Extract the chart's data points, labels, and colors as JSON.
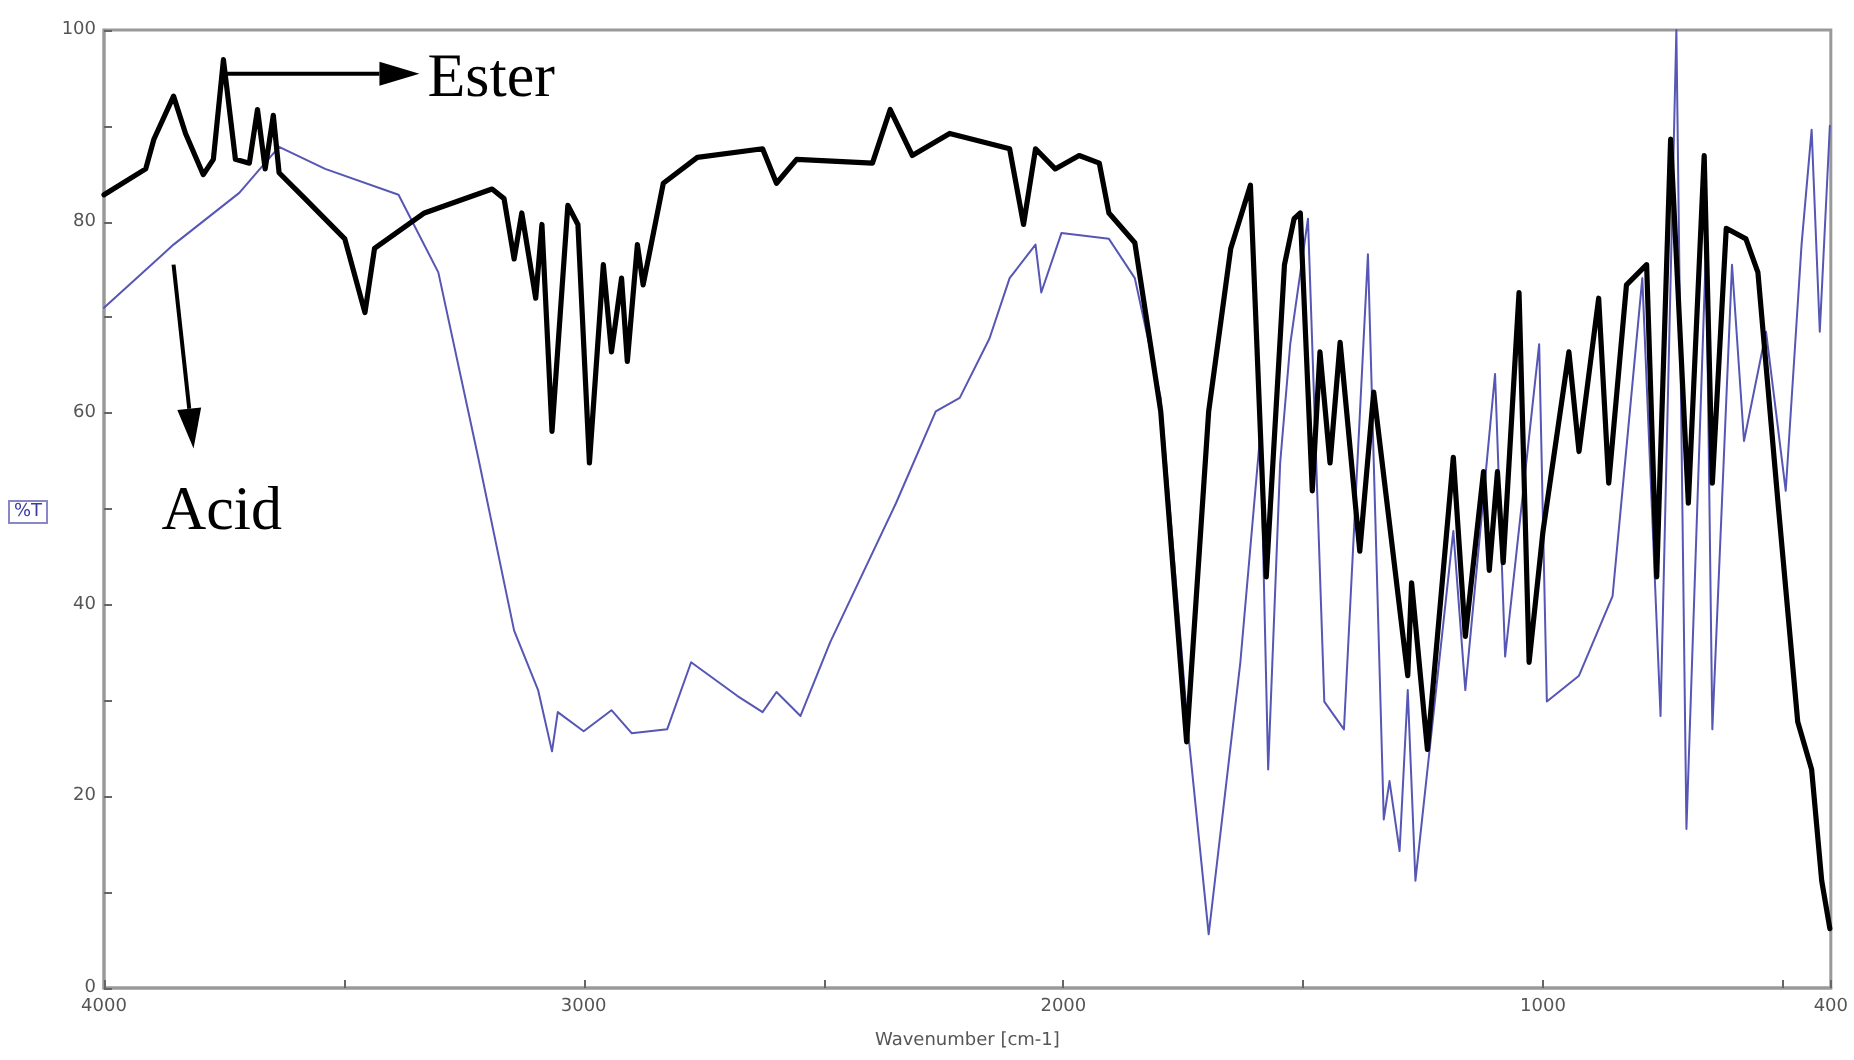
{
  "chart_data": {
    "type": "line",
    "xlabel": "Wavenumber [cm-1]",
    "ylabel": "%T",
    "xlim": [
      4000,
      400
    ],
    "ylim": [
      0,
      100
    ],
    "xticks": [
      4000,
      {
        "value": 3500,
        "label": null
      },
      3000,
      {
        "value": 2500,
        "label": null
      },
      2000,
      {
        "value": 1500,
        "label": null
      },
      1000,
      {
        "value": 500,
        "label": null
      },
      400
    ],
    "yticks": [
      0,
      {
        "value": 10,
        "label": null
      },
      20,
      {
        "value": 30,
        "label": null
      },
      40,
      {
        "value": 50,
        "label": null
      },
      60,
      {
        "value": 70,
        "label": null
      },
      80,
      {
        "value": 90,
        "label": null
      },
      100
    ],
    "grid": false,
    "legend": "top left",
    "marker": "none",
    "line_style": "solid",
    "series": [
      {
        "name": "Ester",
        "color": "#000000",
        "x": [
          4000,
          3913,
          3896,
          3855,
          3830,
          3793,
          3772,
          3751,
          3726,
          3697,
          3680,
          3664,
          3647,
          3635,
          3581,
          3498,
          3456,
          3436,
          3332,
          3191,
          3166,
          3145,
          3129,
          3100,
          3087,
          3066,
          3033,
          3012,
          2988,
          2959,
          2942,
          2921,
          2909,
          2888,
          2876,
          2834,
          2763,
          2627,
          2598,
          2556,
          2398,
          2361,
          2315,
          2237,
          2112,
          2083,
          2058,
          2017,
          1967,
          1925,
          1905,
          1851,
          1797,
          1743,
          1697,
          1651,
          1610,
          1577,
          1539,
          1519,
          1506,
          1481,
          1465,
          1444,
          1423,
          1382,
          1353,
          1282,
          1274,
          1241,
          1187,
          1162,
          1124,
          1112,
          1095,
          1083,
          1050,
          1029,
          1000,
          946,
          925,
          884,
          863,
          826,
          784,
          763,
          734,
          697,
          664,
          647,
          618,
          577,
          552,
          510,
          469,
          440,
          419,
          402
        ],
        "values": [
          82.8,
          85.5,
          88.6,
          93.1,
          89.2,
          84.9,
          86.5,
          96.9,
          86.5,
          86.1,
          91.7,
          85.5,
          91.1,
          85.1,
          82.4,
          78.2,
          70.5,
          77.2,
          80.9,
          83.4,
          82.4,
          76.1,
          80.9,
          72.0,
          79.7,
          58.1,
          81.7,
          79.7,
          54.8,
          75.5,
          66.4,
          74.1,
          65.4,
          77.6,
          73.4,
          84.0,
          86.7,
          87.6,
          84.0,
          86.5,
          86.1,
          91.7,
          86.9,
          89.2,
          87.6,
          79.7,
          87.6,
          85.5,
          86.9,
          86.1,
          80.9,
          77.8,
          60.2,
          25.7,
          60.2,
          77.2,
          83.8,
          42.9,
          75.5,
          80.3,
          80.9,
          51.9,
          66.4,
          54.8,
          67.4,
          45.6,
          62.2,
          32.6,
          42.3,
          24.9,
          55.4,
          36.7,
          53.9,
          43.6,
          53.9,
          44.4,
          72.6,
          34.0,
          47.7,
          66.4,
          56.0,
          72.0,
          52.7,
          73.4,
          75.5,
          42.9,
          88.6,
          50.6,
          86.9,
          52.7,
          79.3,
          78.2,
          74.7,
          50.6,
          27.8,
          22.8,
          11.2,
          6.2
        ]
      },
      {
        "name": "Acid",
        "color": "#5656b4",
        "x": [
          4000,
          3855,
          3718,
          3635,
          3539,
          3386,
          3303,
          3220,
          3145,
          3095,
          3066,
          3054,
          3000,
          2942,
          2900,
          2826,
          2776,
          2680,
          2627,
          2598,
          2548,
          2486,
          2349,
          2266,
          2216,
          2154,
          2112,
          2058,
          2046,
          2004,
          1905,
          1851,
          1797,
          1739,
          1697,
          1631,
          1589,
          1573,
          1548,
          1527,
          1490,
          1456,
          1415,
          1365,
          1332,
          1320,
          1299,
          1282,
          1266,
          1187,
          1162,
          1100,
          1079,
          1008,
          992,
          925,
          855,
          793,
          755,
          722,
          701,
          660,
          647,
          606,
          581,
          535,
          494,
          461,
          440,
          423,
          402
        ],
        "values": [
          71.0,
          77.6,
          83.0,
          87.8,
          85.5,
          82.8,
          74.7,
          55.4,
          37.3,
          31.1,
          24.7,
          28.8,
          26.8,
          29.0,
          26.6,
          27.0,
          34.0,
          30.5,
          28.8,
          30.9,
          28.4,
          36.1,
          50.6,
          60.2,
          61.6,
          67.8,
          74.1,
          77.6,
          72.6,
          78.8,
          78.2,
          74.1,
          61.6,
          26.3,
          5.6,
          34.0,
          58.1,
          22.8,
          54.8,
          67.2,
          80.3,
          29.9,
          27.0,
          76.6,
          17.6,
          21.6,
          14.3,
          31.1,
          11.2,
          47.7,
          31.1,
          64.1,
          34.6,
          67.2,
          29.9,
          32.6,
          40.9,
          74.1,
          28.4,
          100.0,
          16.6,
          77.6,
          27.0,
          75.5,
          57.1,
          68.5,
          51.9,
          77.6,
          89.6,
          68.5,
          90.0
        ]
      }
    ]
  }
}
